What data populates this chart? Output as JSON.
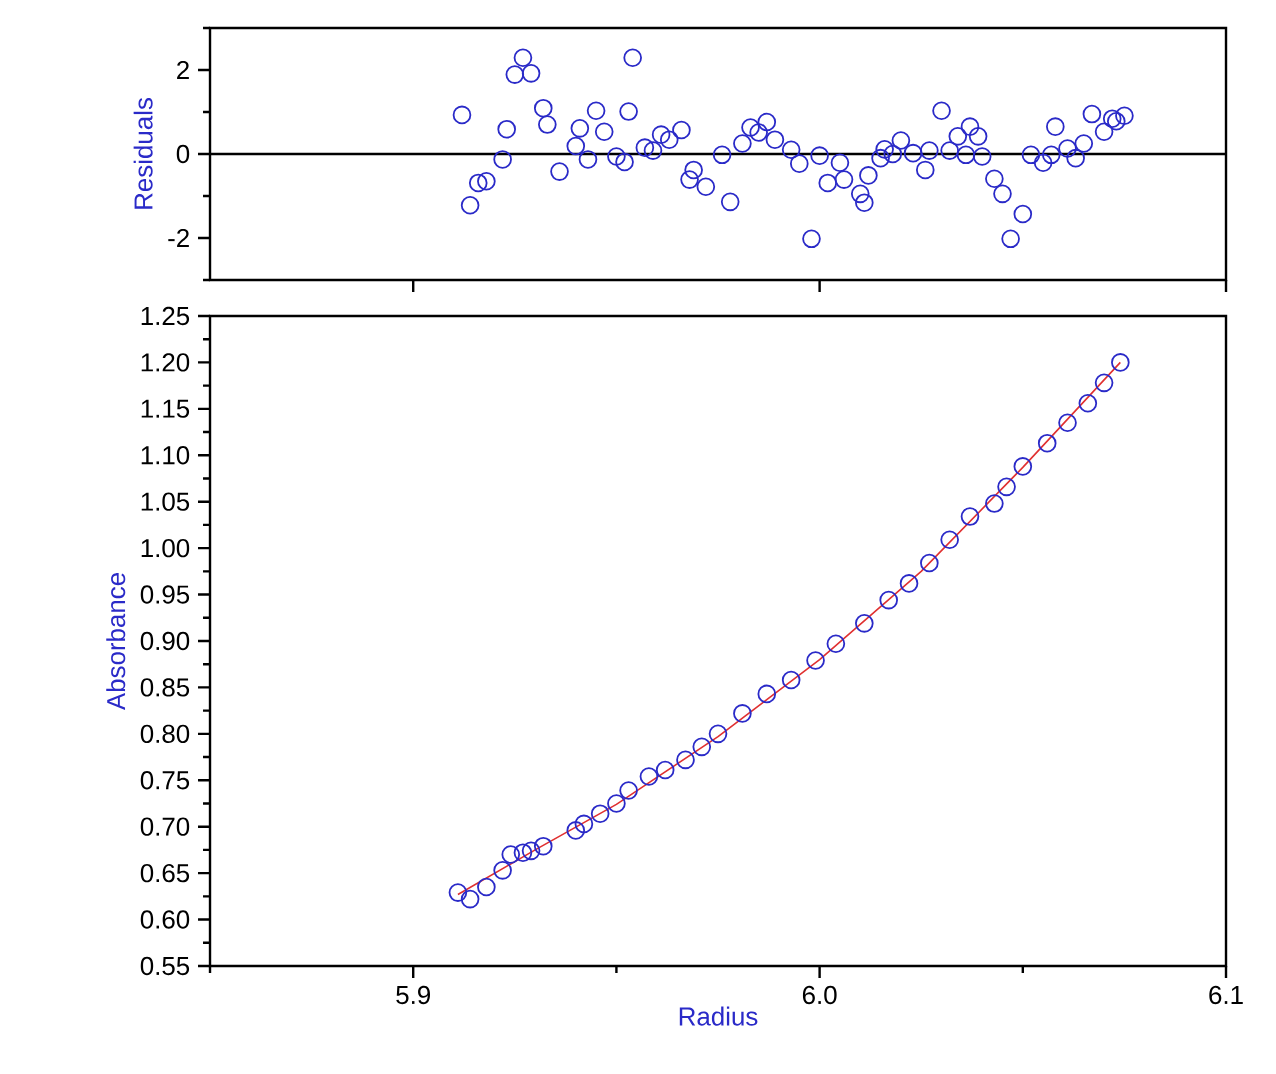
{
  "chart_data": [
    {
      "type": "scatter",
      "ylabel": "Residuals",
      "xlim": [
        5.85,
        6.1
      ],
      "xticks": [
        {
          "value": 5.9,
          "label": null
        },
        {
          "value": 6.0,
          "label": null
        },
        {
          "value": 6.1,
          "label": null
        }
      ],
      "ylim": [
        -3,
        3
      ],
      "yticks": [
        {
          "value": -3,
          "label": null
        },
        -2,
        {
          "value": -1,
          "label": null
        },
        0,
        {
          "value": 1,
          "label": null
        },
        2,
        {
          "value": 3,
          "label": null
        }
      ],
      "tick_labels": "y",
      "marker": "circle",
      "ref_lines": [
        {
          "axis": "y",
          "value": 0,
          "color": "#000000"
        }
      ],
      "series": [
        {
          "color": "#2a2ac8",
          "x": [
            5.912,
            5.914,
            5.916,
            5.918,
            5.922,
            5.923,
            5.925,
            5.927,
            5.929,
            5.932,
            5.933,
            5.936,
            5.94,
            5.941,
            5.943,
            5.945,
            5.947,
            5.95,
            5.952,
            5.953,
            5.954,
            5.957,
            5.959,
            5.961,
            5.963,
            5.966,
            5.968,
            5.969,
            5.972,
            5.976,
            5.978,
            5.981,
            5.983,
            5.985,
            5.987,
            5.989,
            5.993,
            5.995,
            5.998,
            6.0,
            6.002,
            6.005,
            6.006,
            6.01,
            6.011,
            6.012,
            6.015,
            6.016,
            6.018,
            6.02,
            6.023,
            6.026,
            6.027,
            6.03,
            6.032,
            6.034,
            6.036,
            6.037,
            6.039,
            6.04,
            6.043,
            6.045,
            6.047,
            6.05,
            6.052,
            6.055,
            6.057,
            6.058,
            6.061,
            6.063,
            6.065,
            6.067,
            6.07,
            6.072,
            6.073,
            6.075
          ],
          "values": [
            0.93,
            -1.22,
            -0.69,
            -0.65,
            -0.13,
            0.59,
            1.89,
            2.29,
            1.92,
            1.09,
            0.7,
            -0.42,
            0.19,
            0.61,
            -0.13,
            1.03,
            0.53,
            -0.06,
            -0.19,
            1.01,
            2.29,
            0.15,
            0.08,
            0.46,
            0.34,
            0.57,
            -0.61,
            -0.38,
            -0.78,
            -0.02,
            -1.14,
            0.25,
            0.63,
            0.51,
            0.76,
            0.34,
            0.1,
            -0.23,
            -2.02,
            -0.04,
            -0.69,
            -0.21,
            -0.61,
            -0.95,
            -1.16,
            -0.51,
            -0.1,
            0.11,
            0.0,
            0.32,
            0.02,
            -0.38,
            0.08,
            1.03,
            0.08,
            0.42,
            -0.02,
            0.65,
            0.42,
            -0.06,
            -0.59,
            -0.95,
            -2.02,
            -1.43,
            -0.02,
            -0.21,
            -0.02,
            0.65,
            0.13,
            -0.1,
            0.25,
            0.95,
            0.53,
            0.84,
            0.78,
            0.91
          ]
        }
      ]
    },
    {
      "type": "scatter",
      "xlabel": "Radius",
      "ylabel": "Absorbance",
      "xlim": [
        5.85,
        6.1
      ],
      "xticks": [
        {
          "value": 5.85,
          "label": null
        },
        5.9,
        {
          "value": 5.95,
          "label": null
        },
        {
          "value": 6.0,
          "label": "6.0"
        },
        {
          "value": 6.05,
          "label": null
        },
        6.1
      ],
      "ylim": [
        0.55,
        1.25
      ],
      "yticks": [
        0.55,
        {
          "value": 0.575,
          "label": null
        },
        {
          "value": 0.6,
          "label": "0.60"
        },
        {
          "value": 0.625,
          "label": null
        },
        0.65,
        {
          "value": 0.675,
          "label": null
        },
        {
          "value": 0.7,
          "label": "0.70"
        },
        {
          "value": 0.725,
          "label": null
        },
        0.75,
        {
          "value": 0.775,
          "label": null
        },
        {
          "value": 0.8,
          "label": "0.80"
        },
        {
          "value": 0.825,
          "label": null
        },
        0.85,
        {
          "value": 0.875,
          "label": null
        },
        {
          "value": 0.9,
          "label": "0.90"
        },
        {
          "value": 0.925,
          "label": null
        },
        0.95,
        {
          "value": 0.975,
          "label": null
        },
        {
          "value": 1.0,
          "label": "1.00"
        },
        {
          "value": 1.025,
          "label": null
        },
        1.05,
        {
          "value": 1.075,
          "label": null
        },
        {
          "value": 1.1,
          "label": "1.10"
        },
        {
          "value": 1.125,
          "label": null
        },
        1.15,
        {
          "value": 1.175,
          "label": null
        },
        {
          "value": 1.2,
          "label": "1.20"
        },
        {
          "value": 1.225,
          "label": null
        },
        1.25
      ],
      "marker": "circle",
      "series": [
        {
          "color": "#2a2ac8",
          "x": [
            5.911,
            5.914,
            5.918,
            5.922,
            5.924,
            5.927,
            5.929,
            5.932,
            5.94,
            5.942,
            5.946,
            5.95,
            5.953,
            5.958,
            5.962,
            5.967,
            5.971,
            5.975,
            5.981,
            5.987,
            5.993,
            5.999,
            6.004,
            6.011,
            6.017,
            6.022,
            6.027,
            6.032,
            6.037,
            6.043,
            6.046,
            6.05,
            6.056,
            6.061,
            6.066,
            6.07,
            6.074
          ],
          "values": [
            0.629,
            0.622,
            0.635,
            0.653,
            0.67,
            0.672,
            0.674,
            0.679,
            0.696,
            0.703,
            0.714,
            0.725,
            0.739,
            0.754,
            0.761,
            0.772,
            0.786,
            0.8,
            0.822,
            0.843,
            0.858,
            0.879,
            0.897,
            0.919,
            0.944,
            0.962,
            0.984,
            1.009,
            1.034,
            1.048,
            1.066,
            1.088,
            1.113,
            1.135,
            1.156,
            1.178,
            1.2
          ]
        },
        {
          "type": "line",
          "color": "#e03030",
          "line_style": "solid",
          "marker": "none",
          "x": [
            5.911,
            5.93,
            5.95,
            5.975,
            6.0,
            6.025,
            6.05,
            6.074
          ],
          "values": [
            0.627,
            0.675,
            0.724,
            0.797,
            0.88,
            0.975,
            1.087,
            1.2
          ]
        }
      ]
    }
  ]
}
